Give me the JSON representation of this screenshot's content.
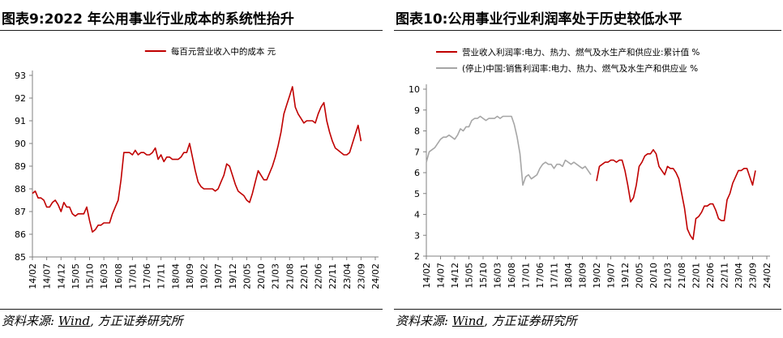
{
  "left_panel": {
    "figure_title": "图表9:2022 年公用事业行业成本的系统性抬升",
    "source_prefix": "资料来源:",
    "source_wind": "Wind",
    "source_suffix": ", 方正证券研究所"
  },
  "right_panel": {
    "figure_title": "图表10:公用事业行业利润率处于历史较低水平",
    "source_prefix": "资料来源:",
    "source_wind": "Wind",
    "source_suffix": ", 方正证券研究所"
  },
  "chart_data": [
    {
      "type": "line",
      "title": "",
      "xlabel": "",
      "ylabel": "",
      "ylim": [
        85,
        93
      ],
      "yticks": [
        85,
        86,
        87,
        88,
        89,
        90,
        91,
        92,
        93
      ],
      "grid": false,
      "legend_position": "top-center",
      "x_tick_labels": [
        "14/02",
        "14/07",
        "14/12",
        "15/05",
        "15/10",
        "16/03",
        "16/08",
        "17/01",
        "17/06",
        "17/11",
        "18/04",
        "18/09",
        "19/02",
        "19/07",
        "19/12",
        "20/05",
        "20/10",
        "21/03",
        "21/08",
        "22/01",
        "22/06",
        "22/11",
        "23/04",
        "23/09",
        "24/02"
      ],
      "series": [
        {
          "name": "每百元营业收入中的成本 元",
          "color": "#c00000",
          "points": [
            [
              "14/02",
              87.8
            ],
            [
              "14/03",
              87.9
            ],
            [
              "14/04",
              87.6
            ],
            [
              "14/05",
              87.6
            ],
            [
              "14/06",
              87.5
            ],
            [
              "14/07",
              87.2
            ],
            [
              "14/08",
              87.2
            ],
            [
              "14/09",
              87.4
            ],
            [
              "14/10",
              87.5
            ],
            [
              "14/11",
              87.3
            ],
            [
              "14/12",
              87.0
            ],
            [
              "15/01",
              87.4
            ],
            [
              "15/02",
              87.2
            ],
            [
              "15/03",
              87.2
            ],
            [
              "15/04",
              86.9
            ],
            [
              "15/05",
              86.8
            ],
            [
              "15/06",
              86.9
            ],
            [
              "15/07",
              86.9
            ],
            [
              "15/08",
              86.9
            ],
            [
              "15/09",
              87.2
            ],
            [
              "15/10",
              86.6
            ],
            [
              "15/11",
              86.1
            ],
            [
              "15/12",
              86.2
            ],
            [
              "16/01",
              86.4
            ],
            [
              "16/02",
              86.4
            ],
            [
              "16/03",
              86.5
            ],
            [
              "16/04",
              86.5
            ],
            [
              "16/05",
              86.5
            ],
            [
              "16/06",
              86.9
            ],
            [
              "16/07",
              87.2
            ],
            [
              "16/08",
              87.5
            ],
            [
              "16/09",
              88.4
            ],
            [
              "16/10",
              89.6
            ],
            [
              "16/11",
              89.6
            ],
            [
              "16/12",
              89.6
            ],
            [
              "17/01",
              89.5
            ],
            [
              "17/02",
              89.7
            ],
            [
              "17/03",
              89.5
            ],
            [
              "17/04",
              89.6
            ],
            [
              "17/05",
              89.6
            ],
            [
              "17/06",
              89.5
            ],
            [
              "17/07",
              89.5
            ],
            [
              "17/08",
              89.6
            ],
            [
              "17/09",
              89.8
            ],
            [
              "17/10",
              89.3
            ],
            [
              "17/11",
              89.5
            ],
            [
              "17/12",
              89.2
            ],
            [
              "18/01",
              89.4
            ],
            [
              "18/02",
              89.4
            ],
            [
              "18/03",
              89.3
            ],
            [
              "18/04",
              89.3
            ],
            [
              "18/05",
              89.3
            ],
            [
              "18/06",
              89.4
            ],
            [
              "18/07",
              89.6
            ],
            [
              "18/08",
              89.6
            ],
            [
              "18/09",
              90.0
            ],
            [
              "18/10",
              89.4
            ],
            [
              "18/11",
              88.8
            ],
            [
              "18/12",
              88.3
            ],
            [
              "19/01",
              88.1
            ],
            [
              "19/02",
              88.0
            ],
            [
              "19/03",
              88.0
            ],
            [
              "19/04",
              88.0
            ],
            [
              "19/05",
              88.0
            ],
            [
              "19/06",
              87.9
            ],
            [
              "19/07",
              88.0
            ],
            [
              "19/08",
              88.3
            ],
            [
              "19/09",
              88.6
            ],
            [
              "19/10",
              89.1
            ],
            [
              "19/11",
              89.0
            ],
            [
              "19/12",
              88.6
            ],
            [
              "20/01",
              88.2
            ],
            [
              "20/02",
              87.9
            ],
            [
              "20/03",
              87.8
            ],
            [
              "20/04",
              87.7
            ],
            [
              "20/05",
              87.5
            ],
            [
              "20/06",
              87.4
            ],
            [
              "20/07",
              87.8
            ],
            [
              "20/08",
              88.3
            ],
            [
              "20/09",
              88.8
            ],
            [
              "20/10",
              88.6
            ],
            [
              "20/11",
              88.4
            ],
            [
              "20/12",
              88.4
            ],
            [
              "21/01",
              88.7
            ],
            [
              "21/02",
              89.0
            ],
            [
              "21/03",
              89.4
            ],
            [
              "21/04",
              89.9
            ],
            [
              "21/05",
              90.5
            ],
            [
              "21/06",
              91.3
            ],
            [
              "21/07",
              91.7
            ],
            [
              "21/08",
              92.1
            ],
            [
              "21/09",
              92.5
            ],
            [
              "21/10",
              91.6
            ],
            [
              "21/11",
              91.3
            ],
            [
              "21/12",
              91.1
            ],
            [
              "22/01",
              90.9
            ],
            [
              "22/02",
              91.0
            ],
            [
              "22/03",
              91.0
            ],
            [
              "22/04",
              91.0
            ],
            [
              "22/05",
              90.9
            ],
            [
              "22/06",
              91.3
            ],
            [
              "22/07",
              91.6
            ],
            [
              "22/08",
              91.8
            ],
            [
              "22/09",
              91.0
            ],
            [
              "22/10",
              90.5
            ],
            [
              "22/11",
              90.1
            ],
            [
              "22/12",
              89.8
            ],
            [
              "23/01",
              89.7
            ],
            [
              "23/02",
              89.6
            ],
            [
              "23/03",
              89.5
            ],
            [
              "23/04",
              89.5
            ],
            [
              "23/05",
              89.6
            ],
            [
              "23/06",
              90.0
            ],
            [
              "23/07",
              90.4
            ],
            [
              "23/08",
              90.8
            ],
            [
              "23/09",
              90.1
            ]
          ]
        }
      ]
    },
    {
      "type": "line",
      "title": "",
      "xlabel": "",
      "ylabel": "",
      "ylim": [
        2,
        10
      ],
      "yticks": [
        2,
        3,
        4,
        5,
        6,
        7,
        8,
        9,
        10
      ],
      "grid": false,
      "legend_position": "top-left",
      "x_tick_labels": [
        "14/02",
        "14/07",
        "14/12",
        "15/05",
        "15/10",
        "16/03",
        "16/08",
        "17/01",
        "17/06",
        "17/11",
        "18/04",
        "18/09",
        "19/02",
        "19/07",
        "19/12",
        "20/05",
        "20/10",
        "21/03",
        "21/08",
        "22/01",
        "22/06",
        "22/11",
        "23/04",
        "23/09",
        "24/02"
      ],
      "series": [
        {
          "name": "营业收入利润率:电力、热力、燃气及水生产和供应业:累计值 %",
          "color": "#c00000",
          "points": [
            [
              "19/02",
              5.6
            ],
            [
              "19/03",
              6.3
            ],
            [
              "19/04",
              6.4
            ],
            [
              "19/05",
              6.5
            ],
            [
              "19/06",
              6.5
            ],
            [
              "19/07",
              6.6
            ],
            [
              "19/08",
              6.6
            ],
            [
              "19/09",
              6.5
            ],
            [
              "19/10",
              6.6
            ],
            [
              "19/11",
              6.6
            ],
            [
              "19/12",
              6.1
            ],
            [
              "20/01",
              5.4
            ],
            [
              "20/02",
              4.6
            ],
            [
              "20/03",
              4.8
            ],
            [
              "20/04",
              5.4
            ],
            [
              "20/05",
              6.3
            ],
            [
              "20/06",
              6.5
            ],
            [
              "20/07",
              6.8
            ],
            [
              "20/08",
              6.9
            ],
            [
              "20/09",
              6.9
            ],
            [
              "20/10",
              7.1
            ],
            [
              "20/11",
              6.9
            ],
            [
              "20/12",
              6.3
            ],
            [
              "21/01",
              6.1
            ],
            [
              "21/02",
              5.9
            ],
            [
              "21/03",
              6.3
            ],
            [
              "21/04",
              6.2
            ],
            [
              "21/05",
              6.2
            ],
            [
              "21/06",
              6.0
            ],
            [
              "21/07",
              5.7
            ],
            [
              "21/08",
              5.0
            ],
            [
              "21/09",
              4.3
            ],
            [
              "21/10",
              3.3
            ],
            [
              "21/11",
              3.0
            ],
            [
              "21/12",
              2.8
            ],
            [
              "22/01",
              3.8
            ],
            [
              "22/02",
              3.9
            ],
            [
              "22/03",
              4.1
            ],
            [
              "22/04",
              4.4
            ],
            [
              "22/05",
              4.4
            ],
            [
              "22/06",
              4.5
            ],
            [
              "22/07",
              4.5
            ],
            [
              "22/08",
              4.2
            ],
            [
              "22/09",
              3.8
            ],
            [
              "22/10",
              3.7
            ],
            [
              "22/11",
              3.7
            ],
            [
              "22/12",
              4.7
            ],
            [
              "23/01",
              5.0
            ],
            [
              "23/02",
              5.5
            ],
            [
              "23/03",
              5.8
            ],
            [
              "23/04",
              6.1
            ],
            [
              "23/05",
              6.1
            ],
            [
              "23/06",
              6.2
            ],
            [
              "23/07",
              6.2
            ],
            [
              "23/08",
              5.8
            ],
            [
              "23/09",
              5.4
            ],
            [
              "23/10",
              6.1
            ]
          ]
        },
        {
          "name": "(停止)中国:销售利润率:电力、热力、燃气及水生产和供应业 %",
          "color": "#a6a6a6",
          "points": [
            [
              "14/02",
              6.5
            ],
            [
              "14/03",
              7.0
            ],
            [
              "14/04",
              7.1
            ],
            [
              "14/05",
              7.2
            ],
            [
              "14/06",
              7.4
            ],
            [
              "14/07",
              7.6
            ],
            [
              "14/08",
              7.7
            ],
            [
              "14/09",
              7.7
            ],
            [
              "14/10",
              7.8
            ],
            [
              "14/11",
              7.7
            ],
            [
              "14/12",
              7.6
            ],
            [
              "15/01",
              7.8
            ],
            [
              "15/02",
              8.1
            ],
            [
              "15/03",
              8.0
            ],
            [
              "15/04",
              8.2
            ],
            [
              "15/05",
              8.2
            ],
            [
              "15/06",
              8.5
            ],
            [
              "15/07",
              8.6
            ],
            [
              "15/08",
              8.6
            ],
            [
              "15/09",
              8.7
            ],
            [
              "15/10",
              8.6
            ],
            [
              "15/11",
              8.5
            ],
            [
              "15/12",
              8.6
            ],
            [
              "16/01",
              8.6
            ],
            [
              "16/02",
              8.6
            ],
            [
              "16/03",
              8.7
            ],
            [
              "16/04",
              8.6
            ],
            [
              "16/05",
              8.7
            ],
            [
              "16/06",
              8.7
            ],
            [
              "16/07",
              8.7
            ],
            [
              "16/08",
              8.7
            ],
            [
              "16/09",
              8.3
            ],
            [
              "16/10",
              7.7
            ],
            [
              "16/11",
              6.9
            ],
            [
              "16/12",
              5.4
            ],
            [
              "17/01",
              5.8
            ],
            [
              "17/02",
              5.9
            ],
            [
              "17/03",
              5.7
            ],
            [
              "17/04",
              5.8
            ],
            [
              "17/05",
              5.9
            ],
            [
              "17/06",
              6.2
            ],
            [
              "17/07",
              6.4
            ],
            [
              "17/08",
              6.5
            ],
            [
              "17/09",
              6.4
            ],
            [
              "17/10",
              6.4
            ],
            [
              "17/11",
              6.2
            ],
            [
              "17/12",
              6.4
            ],
            [
              "18/01",
              6.4
            ],
            [
              "18/02",
              6.3
            ],
            [
              "18/03",
              6.6
            ],
            [
              "18/04",
              6.5
            ],
            [
              "18/05",
              6.4
            ],
            [
              "18/06",
              6.5
            ],
            [
              "18/07",
              6.4
            ],
            [
              "18/08",
              6.3
            ],
            [
              "18/09",
              6.2
            ],
            [
              "18/10",
              6.3
            ],
            [
              "18/11",
              6.1
            ],
            [
              "18/12",
              5.9
            ]
          ]
        }
      ]
    }
  ]
}
